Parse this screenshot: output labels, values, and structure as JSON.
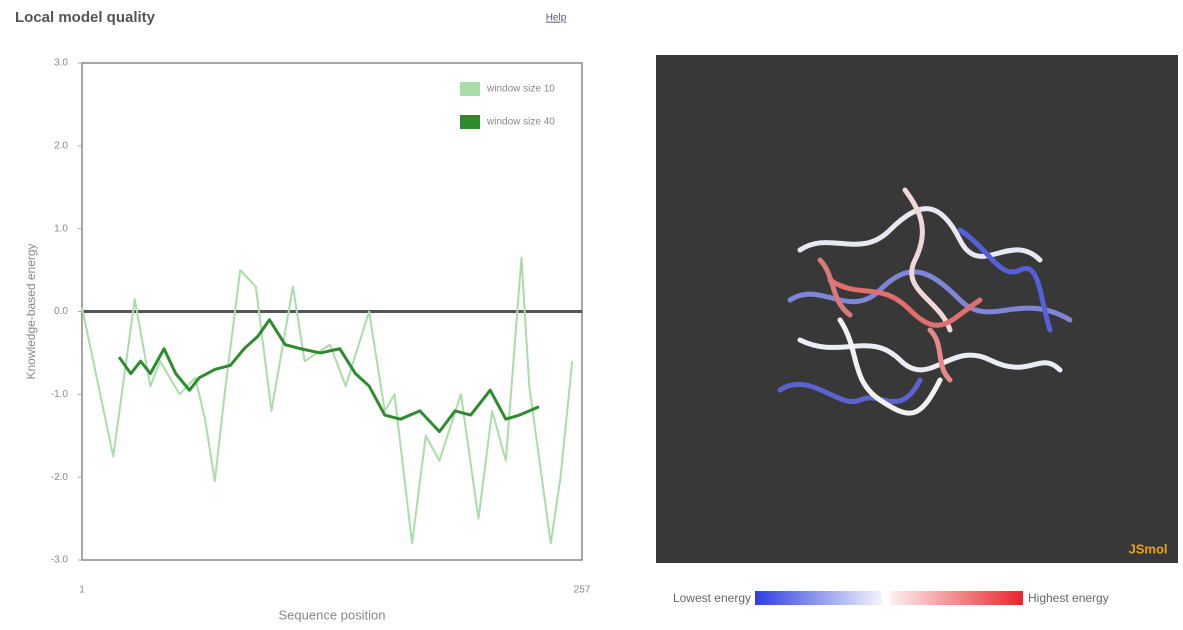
{
  "header": {
    "title": "Local model quality",
    "help": "Help"
  },
  "chart_data": {
    "type": "line",
    "x_label": "Sequence position",
    "y_label": "Knowledge-based energy",
    "xlim": [
      1,
      257
    ],
    "xticks": [
      1,
      257
    ],
    "ylim": [
      -3,
      3
    ],
    "yticks": [
      {
        "value": -3,
        "label": "-3.0"
      },
      {
        "value": -2,
        "label": "-2.0"
      },
      {
        "value": -1,
        "label": "-1.0"
      },
      {
        "value": 0,
        "label": "0.0"
      },
      {
        "value": 1,
        "label": "1.0"
      },
      {
        "value": 2,
        "label": "2.0"
      },
      {
        "value": 3,
        "label": "3.0"
      }
    ],
    "series": [
      {
        "name": "window size 10",
        "color": "#a8dea8",
        "x": [
          1,
          17,
          28,
          36,
          41,
          51,
          59,
          64,
          69,
          74,
          82,
          90,
          98,
          109,
          115,
          128,
          136,
          148,
          156,
          161,
          170,
          177,
          184,
          195,
          204,
          211,
          218,
          226,
          230,
          241,
          246,
          252
        ],
        "values": [
          0.05,
          -1.75,
          0.15,
          -0.9,
          -0.6,
          -1.0,
          -0.8,
          -1.3,
          -2.05,
          -1.0,
          0.5,
          0.3,
          -1.2,
          0.3,
          -0.6,
          -0.4,
          -0.9,
          0.0,
          -1.2,
          -1.0,
          -2.8,
          -1.5,
          -1.8,
          -1.0,
          -2.5,
          -1.2,
          -1.8,
          0.65,
          -0.9,
          -2.8,
          -2.0,
          -0.6
        ]
      },
      {
        "name": "window size 40",
        "color": "#2e8b2e",
        "x": [
          20,
          26,
          31,
          36,
          43,
          49,
          56,
          61,
          69,
          77,
          84,
          91,
          97,
          105,
          113,
          123,
          133,
          141,
          148,
          156,
          164,
          174,
          184,
          192,
          200,
          210,
          218,
          225,
          235
        ],
        "values": [
          -0.55,
          -0.75,
          -0.6,
          -0.75,
          -0.45,
          -0.75,
          -0.95,
          -0.8,
          -0.7,
          -0.65,
          -0.45,
          -0.3,
          -0.1,
          -0.4,
          -0.45,
          -0.5,
          -0.45,
          -0.75,
          -0.9,
          -1.25,
          -1.3,
          -1.2,
          -1.45,
          -1.2,
          -1.25,
          -0.95,
          -1.3,
          -1.25,
          -1.15
        ]
      }
    ]
  },
  "viewer": {
    "brand": "JSmol",
    "legend_low": "Lowest energy",
    "legend_high": "Highest energy"
  }
}
